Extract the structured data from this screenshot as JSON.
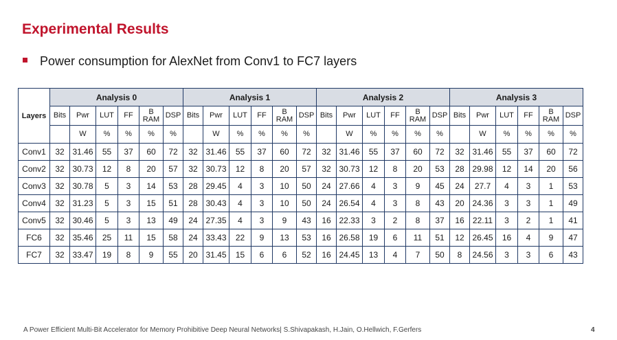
{
  "slide": {
    "title": "Experimental Results",
    "bullet": "Power consumption for AlexNet from Conv1 to FC7 layers",
    "footer": "A Power Efficient Multi-Bit Accelerator for Memory Prohibitive Deep Neural Networks| S.Shivapakash, H.Jain, O.Hellwich, F.Gerfers",
    "page_number": "4",
    "accent_color": "#c0142c",
    "header_fill_color": "#d9dde4"
  },
  "table": {
    "layers_header": "Layers",
    "groups": [
      "Analysis 0",
      "Analysis 1",
      "Analysis 2",
      "Analysis 3"
    ],
    "columns": [
      "Bits",
      "Pwr",
      "LUT",
      "FF",
      "B RAM",
      "DSP"
    ],
    "units": [
      "",
      "W",
      "%",
      "%",
      "%",
      "%"
    ],
    "rows": [
      {
        "layer": "Conv1",
        "values": [
          "32",
          "31.46",
          "55",
          "37",
          "60",
          "72",
          "32",
          "31.46",
          "55",
          "37",
          "60",
          "72",
          "32",
          "31.46",
          "55",
          "37",
          "60",
          "72",
          "32",
          "31.46",
          "55",
          "37",
          "60",
          "72"
        ]
      },
      {
        "layer": "Conv2",
        "values": [
          "32",
          "30.73",
          "12",
          "8",
          "20",
          "57",
          "32",
          "30.73",
          "12",
          "8",
          "20",
          "57",
          "32",
          "30.73",
          "12",
          "8",
          "20",
          "53",
          "28",
          "29.98",
          "12",
          "14",
          "20",
          "56"
        ]
      },
      {
        "layer": "Conv3",
        "values": [
          "32",
          "30.78",
          "5",
          "3",
          "14",
          "53",
          "28",
          "29.45",
          "4",
          "3",
          "10",
          "50",
          "24",
          "27.66",
          "4",
          "3",
          "9",
          "45",
          "24",
          "27.7",
          "4",
          "3",
          "1",
          "53"
        ]
      },
      {
        "layer": "Conv4",
        "values": [
          "32",
          "31.23",
          "5",
          "3",
          "15",
          "51",
          "28",
          "30.43",
          "4",
          "3",
          "10",
          "50",
          "24",
          "26.54",
          "4",
          "3",
          "8",
          "43",
          "20",
          "24.36",
          "3",
          "3",
          "1",
          "49"
        ]
      },
      {
        "layer": "Conv5",
        "values": [
          "32",
          "30.46",
          "5",
          "3",
          "13",
          "49",
          "24",
          "27.35",
          "4",
          "3",
          "9",
          "43",
          "16",
          "22.33",
          "3",
          "2",
          "8",
          "37",
          "16",
          "22.11",
          "3",
          "2",
          "1",
          "41"
        ]
      },
      {
        "layer": "FC6",
        "values": [
          "32",
          "35.46",
          "25",
          "11",
          "15",
          "58",
          "24",
          "33.43",
          "22",
          "9",
          "13",
          "53",
          "16",
          "26.58",
          "19",
          "6",
          "11",
          "51",
          "12",
          "26.45",
          "16",
          "4",
          "9",
          "47"
        ]
      },
      {
        "layer": "FC7",
        "values": [
          "32",
          "33.47",
          "19",
          "8",
          "9",
          "55",
          "20",
          "31.45",
          "15",
          "6",
          "6",
          "52",
          "16",
          "24.45",
          "13",
          "4",
          "7",
          "50",
          "8",
          "24.56",
          "3",
          "3",
          "6",
          "43"
        ]
      }
    ]
  }
}
